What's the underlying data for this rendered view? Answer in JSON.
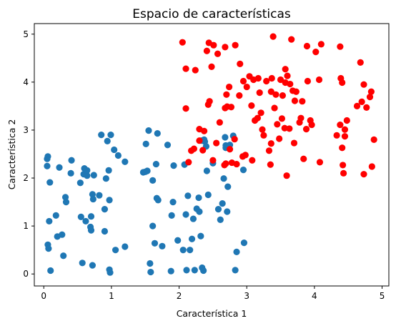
{
  "chart_data": {
    "type": "scatter",
    "title": "Espacio de características",
    "xlabel": "Característica 1",
    "ylabel": "Característica 2",
    "xlim": [
      -0.14,
      5.1
    ],
    "ylim": [
      -0.25,
      5.22
    ],
    "xticks": [
      0,
      1,
      2,
      3,
      4,
      5
    ],
    "yticks": [
      0,
      1,
      2,
      3,
      4,
      5
    ],
    "grid": false,
    "colors": {
      "series_a": "#1f77b4",
      "series_b": "#ff0000"
    },
    "series": [
      {
        "color": "#1f77b4",
        "points": [
          [
            0.05,
            2.25
          ],
          [
            0.05,
            2.4
          ],
          [
            0.06,
            2.45
          ],
          [
            0.09,
            1.91
          ],
          [
            0.06,
            0.61
          ],
          [
            0.07,
            0.53
          ],
          [
            0.08,
            1.1
          ],
          [
            0.1,
            0.07
          ],
          [
            0.18,
            1.22
          ],
          [
            0.2,
            0.78
          ],
          [
            0.27,
            0.82
          ],
          [
            0.29,
            0.38
          ],
          [
            0.23,
            2.22
          ],
          [
            0.32,
            1.6
          ],
          [
            0.33,
            1.5
          ],
          [
            0.4,
            2.1
          ],
          [
            0.41,
            2.37
          ],
          [
            0.54,
            1.9
          ],
          [
            0.55,
            1.19
          ],
          [
            0.57,
            0.23
          ],
          [
            0.59,
            2.08
          ],
          [
            0.6,
            2.2
          ],
          [
            0.62,
            1.1
          ],
          [
            0.64,
            2.05
          ],
          [
            0.64,
            2.16
          ],
          [
            0.69,
            0.98
          ],
          [
            0.7,
            1.2
          ],
          [
            0.7,
            0.91
          ],
          [
            0.72,
            1.66
          ],
          [
            0.72,
            0.18
          ],
          [
            0.74,
            2.06
          ],
          [
            0.73,
            1.56
          ],
          [
            0.82,
            1.64
          ],
          [
            0.85,
            2.9
          ],
          [
            0.9,
            1.35
          ],
          [
            0.92,
            1.99
          ],
          [
            0.94,
            2.77
          ],
          [
            0.9,
            0.89
          ],
          [
            0.97,
            1.54
          ],
          [
            0.96,
            2.16
          ],
          [
            0.97,
            0.09
          ],
          [
            0.98,
            0.03
          ],
          [
            0.99,
            2.9
          ],
          [
            1.04,
            2.59
          ],
          [
            1.06,
            0.5
          ],
          [
            1.1,
            2.47
          ],
          [
            1.2,
            2.34
          ],
          [
            1.2,
            0.57
          ],
          [
            1.47,
            2.12
          ],
          [
            1.5,
            2.13
          ],
          [
            1.51,
            2.71
          ],
          [
            1.53,
            2.15
          ],
          [
            1.55,
            2.99
          ],
          [
            1.57,
            0.22
          ],
          [
            1.58,
            0.04
          ],
          [
            1.61,
            1.0
          ],
          [
            1.61,
            1.95
          ],
          [
            1.64,
            0.64
          ],
          [
            1.66,
            2.29
          ],
          [
            1.67,
            1.58
          ],
          [
            1.68,
            2.93
          ],
          [
            1.69,
            1.54
          ],
          [
            1.75,
            0.58
          ],
          [
            1.83,
            2.69
          ],
          [
            1.88,
            0.06
          ],
          [
            1.89,
            1.22
          ],
          [
            1.91,
            1.5
          ],
          [
            1.92,
            2.26
          ],
          [
            1.98,
            0.7
          ],
          [
            2.06,
            0.5
          ],
          [
            2.08,
            2.28
          ],
          [
            2.1,
            1.24
          ],
          [
            2.11,
            0.08
          ],
          [
            2.13,
            1.63
          ],
          [
            2.16,
            0.5
          ],
          [
            2.19,
            0.73
          ],
          [
            2.21,
            1.15
          ],
          [
            2.23,
            0.08
          ],
          [
            2.26,
            1.36
          ],
          [
            2.29,
            1.59
          ],
          [
            2.3,
            1.3
          ],
          [
            2.32,
            0.79
          ],
          [
            2.33,
            2.78
          ],
          [
            2.34,
            0.13
          ],
          [
            2.36,
            0.07
          ],
          [
            2.37,
            2.8
          ],
          [
            2.38,
            2.76
          ],
          [
            2.4,
            2.66
          ],
          [
            2.41,
            2.15
          ],
          [
            2.43,
            1.65
          ],
          [
            2.5,
            2.31
          ],
          [
            2.58,
            1.35
          ],
          [
            2.61,
            1.13
          ],
          [
            2.64,
            1.47
          ],
          [
            2.66,
            1.99
          ],
          [
            2.68,
            2.85
          ],
          [
            2.69,
            2.68
          ],
          [
            2.69,
            2.63
          ],
          [
            2.71,
            1.3
          ],
          [
            2.72,
            1.82
          ],
          [
            2.75,
            2.69
          ],
          [
            2.8,
            2.88
          ],
          [
            2.83,
            0.08
          ],
          [
            2.85,
            0.46
          ],
          [
            2.95,
            2.17
          ],
          [
            2.96,
            0.65
          ]
        ]
      },
      {
        "color": "#ff0000",
        "points": [
          [
            2.05,
            4.83
          ],
          [
            2.1,
            4.28
          ],
          [
            2.1,
            3.45
          ],
          [
            2.14,
            2.33
          ],
          [
            2.18,
            2.57
          ],
          [
            2.22,
            2.61
          ],
          [
            2.24,
            4.25
          ],
          [
            2.3,
            2.78
          ],
          [
            2.3,
            3.02
          ],
          [
            2.35,
            2.58
          ],
          [
            2.37,
            2.98
          ],
          [
            2.41,
            4.65
          ],
          [
            2.43,
            3.53
          ],
          [
            2.44,
            4.82
          ],
          [
            2.45,
            3.6
          ],
          [
            2.48,
            4.32
          ],
          [
            2.5,
            2.37
          ],
          [
            2.51,
            4.77
          ],
          [
            2.55,
            2.73
          ],
          [
            2.57,
            4.59
          ],
          [
            2.6,
            3.16
          ],
          [
            2.67,
            2.27
          ],
          [
            2.68,
            3.46
          ],
          [
            2.68,
            4.73
          ],
          [
            2.69,
            2.3
          ],
          [
            2.7,
            3.74
          ],
          [
            2.71,
            3.49
          ],
          [
            2.74,
            3.9
          ],
          [
            2.75,
            2.6
          ],
          [
            2.77,
            3.48
          ],
          [
            2.78,
            2.32
          ],
          [
            2.82,
            2.81
          ],
          [
            2.83,
            4.77
          ],
          [
            2.85,
            2.29
          ],
          [
            2.89,
            3.72
          ],
          [
            2.9,
            4.38
          ],
          [
            2.94,
            2.45
          ],
          [
            2.95,
            4.02
          ],
          [
            2.98,
            2.48
          ],
          [
            3.0,
            3.9
          ],
          [
            3.04,
            4.12
          ],
          [
            3.07,
            3.51
          ],
          [
            3.08,
            2.37
          ],
          [
            3.1,
            4.05
          ],
          [
            3.12,
            3.2
          ],
          [
            3.16,
            3.25
          ],
          [
            3.17,
            4.08
          ],
          [
            3.19,
            3.78
          ],
          [
            3.21,
            3.36
          ],
          [
            3.23,
            3.01
          ],
          [
            3.25,
            2.89
          ],
          [
            3.29,
            4.02
          ],
          [
            3.33,
            2.57
          ],
          [
            3.35,
            2.28
          ],
          [
            3.36,
            3.8
          ],
          [
            3.36,
            2.72
          ],
          [
            3.37,
            4.08
          ],
          [
            3.39,
            4.95
          ],
          [
            3.41,
            3.46
          ],
          [
            3.43,
            3.74
          ],
          [
            3.45,
            3.12
          ],
          [
            3.48,
            2.82
          ],
          [
            3.5,
            4.05
          ],
          [
            3.52,
            3.24
          ],
          [
            3.53,
            3.72
          ],
          [
            3.56,
            3.04
          ],
          [
            3.57,
            4.27
          ],
          [
            3.57,
            3.99
          ],
          [
            3.59,
            2.05
          ],
          [
            3.6,
            4.13
          ],
          [
            3.63,
            3.03
          ],
          [
            3.64,
            3.96
          ],
          [
            3.66,
            4.89
          ],
          [
            3.68,
            3.82
          ],
          [
            3.7,
            2.73
          ],
          [
            3.71,
            3.61
          ],
          [
            3.73,
            3.8
          ],
          [
            3.78,
            3.16
          ],
          [
            3.8,
            3.25
          ],
          [
            3.82,
            3.6
          ],
          [
            3.84,
            2.4
          ],
          [
            3.88,
            3.02
          ],
          [
            3.89,
            4.75
          ],
          [
            3.9,
            4.02
          ],
          [
            3.94,
            3.2
          ],
          [
            3.96,
            3.11
          ],
          [
            4.02,
            4.63
          ],
          [
            4.07,
            4.05
          ],
          [
            4.08,
            2.33
          ],
          [
            4.1,
            4.79
          ],
          [
            4.33,
            2.89
          ],
          [
            4.38,
            4.74
          ],
          [
            4.38,
            3.11
          ],
          [
            4.39,
            4.08
          ],
          [
            4.41,
            3.99
          ],
          [
            4.41,
            2.63
          ],
          [
            4.42,
            2.27
          ],
          [
            4.43,
            2.1
          ],
          [
            4.45,
            3.01
          ],
          [
            4.45,
            2.87
          ],
          [
            4.48,
            3.2
          ],
          [
            4.63,
            3.5
          ],
          [
            4.68,
            4.41
          ],
          [
            4.7,
            3.59
          ],
          [
            4.73,
            2.08
          ],
          [
            4.73,
            3.95
          ],
          [
            4.77,
            3.47
          ],
          [
            4.82,
            3.69
          ],
          [
            4.84,
            3.8
          ],
          [
            4.85,
            2.24
          ],
          [
            4.88,
            2.8
          ]
        ]
      }
    ]
  }
}
